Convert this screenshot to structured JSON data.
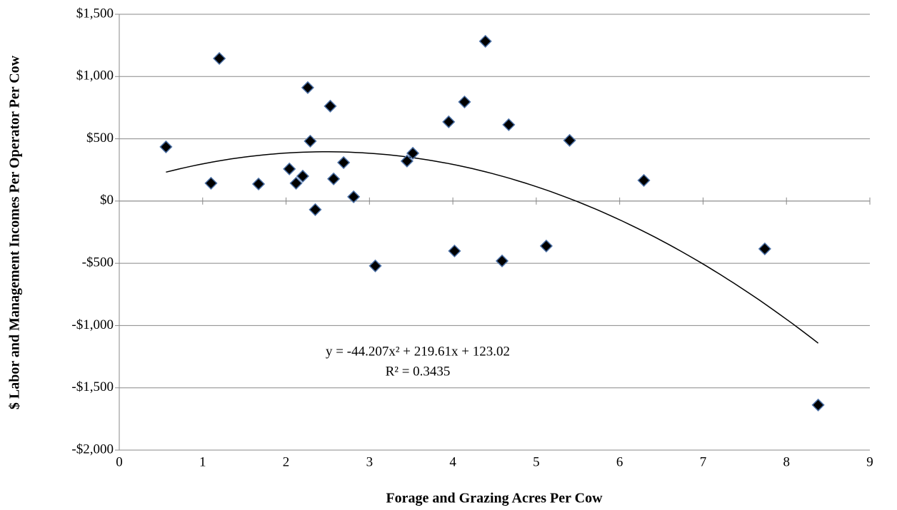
{
  "chart_data": {
    "type": "scatter",
    "x_label": "Forage and Grazing Acres Per Cow",
    "y_label": "$ Labor and Management Incomes Per Operator Per Cow",
    "series": [
      {
        "color": "#000000",
        "edge_color": "#4a6fa5",
        "x": [
          0.56,
          1.1,
          1.2,
          1.67,
          2.04,
          2.12,
          2.2,
          2.26,
          2.29,
          2.35,
          2.53,
          2.57,
          2.69,
          2.81,
          3.07,
          3.45,
          3.52,
          3.95,
          4.02,
          4.14,
          4.39,
          4.59,
          4.67,
          5.12,
          5.4,
          6.29,
          7.74,
          8.38
        ],
        "values": [
          435,
          143,
          1145,
          137,
          258,
          143,
          200,
          911,
          481,
          -69,
          762,
          178,
          309,
          34,
          -521,
          321,
          384,
          636,
          -401,
          796,
          1283,
          -481,
          613,
          -361,
          487,
          166,
          -384,
          -1638
        ]
      }
    ],
    "trendline": {
      "coefficients": [
        -44.207,
        219.61,
        123.02
      ],
      "equation": "y = -44.207x² + 219.61x + 123.02",
      "r_squared": "R² = 0.3435"
    },
    "xlim": [
      0,
      9
    ],
    "xticks": [
      0,
      1,
      2,
      3,
      4,
      5,
      6,
      7,
      8,
      9
    ],
    "ylim": [
      -2000,
      1500
    ],
    "yticks": [
      {
        "value": -2000,
        "label": "-$2,000"
      },
      {
        "value": -1500,
        "label": "-$1,500"
      },
      {
        "value": -1000,
        "label": "-$1,000"
      },
      {
        "value": -500,
        "label": "-$500"
      },
      {
        "value": 0,
        "label": "$0"
      },
      {
        "value": 500,
        "label": "$500"
      },
      {
        "value": 1000,
        "label": "$1,000"
      },
      {
        "value": 1500,
        "label": "$1,500"
      }
    ],
    "grid": true
  }
}
